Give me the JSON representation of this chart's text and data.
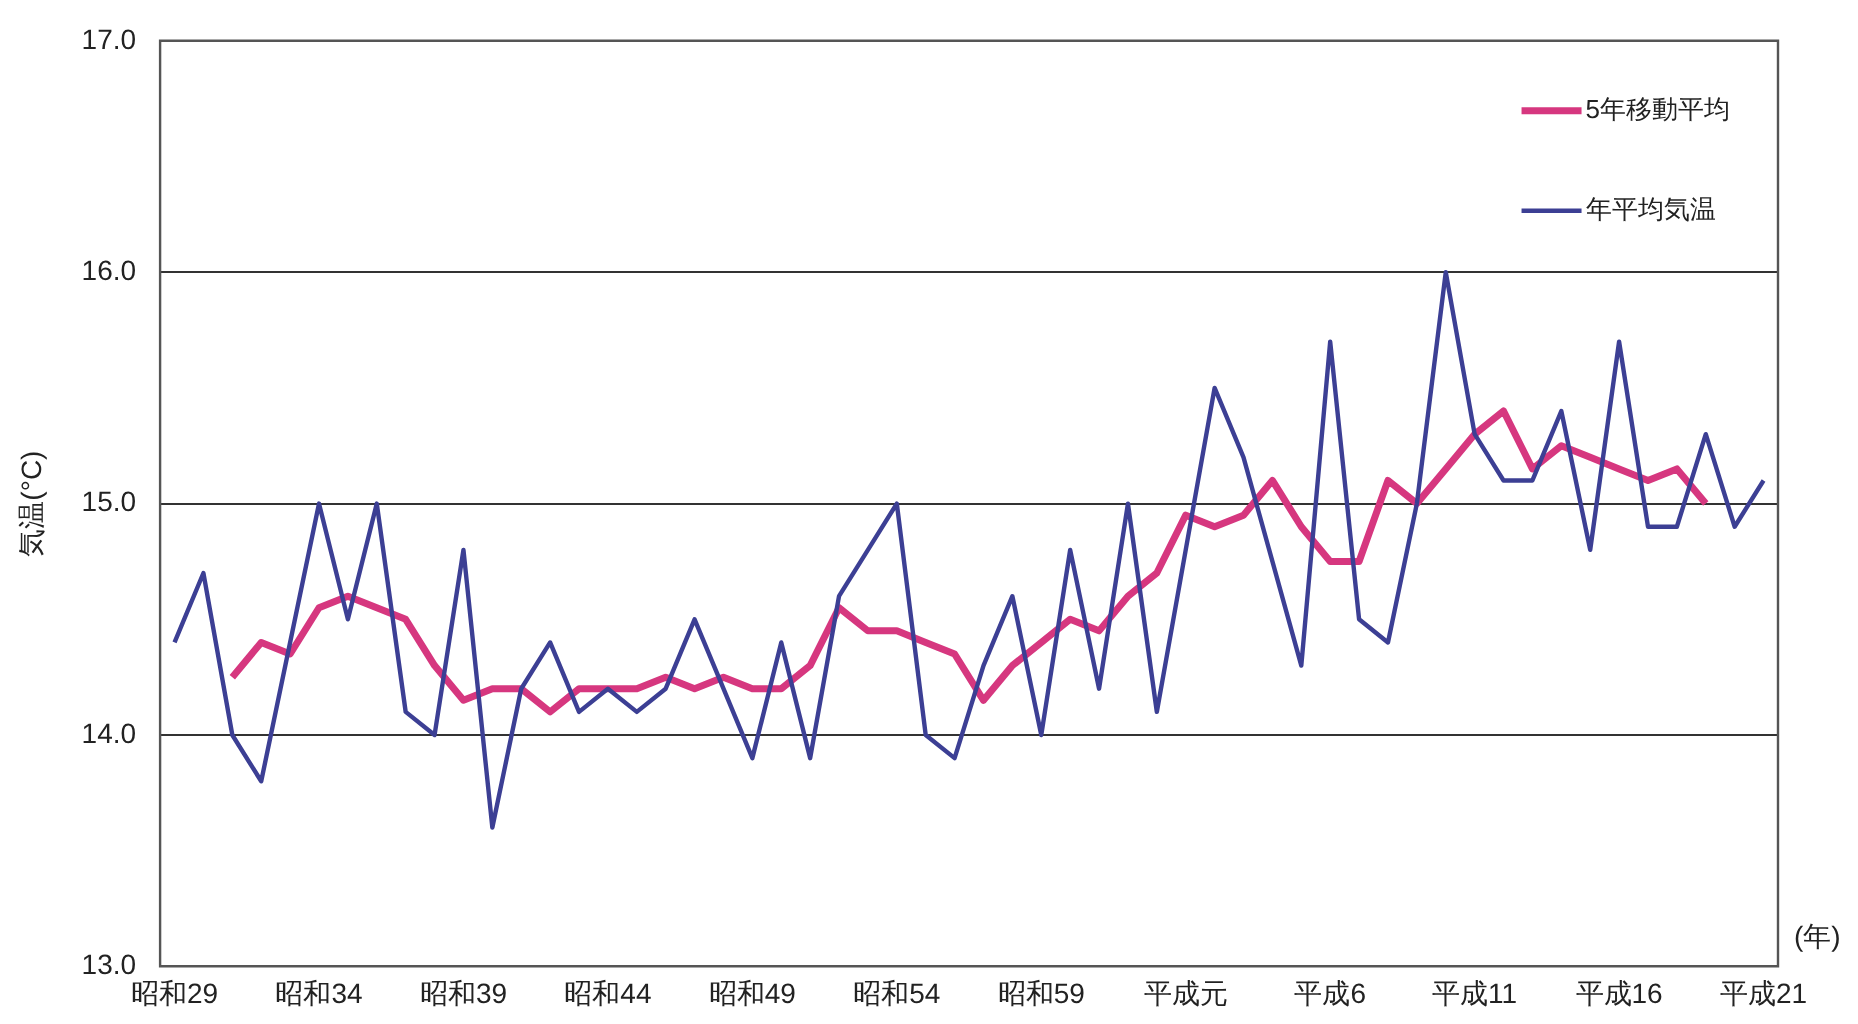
{
  "chart_data": {
    "type": "line",
    "xlabel": "(年)",
    "ylabel": "気温(°C)",
    "categories": [
      "昭和29",
      null,
      null,
      null,
      null,
      "昭和34",
      null,
      null,
      null,
      null,
      "昭和39",
      null,
      null,
      null,
      null,
      "昭和44",
      null,
      null,
      null,
      null,
      "昭和49",
      null,
      null,
      null,
      null,
      "昭和54",
      null,
      null,
      null,
      null,
      "昭和59",
      null,
      null,
      null,
      null,
      "平成元",
      null,
      null,
      null,
      null,
      "平成6",
      null,
      null,
      null,
      null,
      "平成11",
      null,
      null,
      null,
      null,
      "平成16",
      null,
      null,
      null,
      null,
      "平成21"
    ],
    "series": [
      {
        "name": "5年移動平均",
        "color": "#d6377f",
        "values": [
          null,
          null,
          14.25,
          14.4,
          14.35,
          14.55,
          14.6,
          14.55,
          14.5,
          14.3,
          14.15,
          14.2,
          14.2,
          14.1,
          14.2,
          14.2,
          14.2,
          14.25,
          14.2,
          14.25,
          14.2,
          14.2,
          14.3,
          14.55,
          14.45,
          14.45,
          14.4,
          14.35,
          14.15,
          14.3,
          14.4,
          14.5,
          14.45,
          14.6,
          14.7,
          14.95,
          14.9,
          14.95,
          15.1,
          14.9,
          14.75,
          14.75,
          15.1,
          15.0,
          15.15,
          15.3,
          15.4,
          15.15,
          15.25,
          15.2,
          15.15,
          15.1,
          15.15,
          15.0,
          null,
          null
        ]
      },
      {
        "name": "年平均気温",
        "color": "#3c3f94",
        "values": [
          14.4,
          14.7,
          14.0,
          13.8,
          14.4,
          15.0,
          14.5,
          15.0,
          14.1,
          14.0,
          14.8,
          13.6,
          14.2,
          14.4,
          14.1,
          14.2,
          14.1,
          14.2,
          14.5,
          14.2,
          13.9,
          14.4,
          13.9,
          14.6,
          14.8,
          15.0,
          14.0,
          13.9,
          14.3,
          14.6,
          14.0,
          14.8,
          14.2,
          15.0,
          14.1,
          14.8,
          15.5,
          15.2,
          14.75,
          14.3,
          15.7,
          14.5,
          14.4,
          15.0,
          16.0,
          15.3,
          15.1,
          15.1,
          15.4,
          14.8,
          15.7,
          14.9,
          14.9,
          15.3,
          14.9,
          15.1
        ]
      }
    ],
    "ylim": [
      13,
      17
    ],
    "yticks": [
      {
        "value": 13,
        "label": "13.0"
      },
      {
        "value": 14,
        "label": "14.0"
      },
      {
        "value": 15,
        "label": "15.0"
      },
      {
        "value": 16,
        "label": "16.0"
      },
      {
        "value": 17,
        "label": "17.0"
      }
    ],
    "grid": "y",
    "legend": "top right",
    "marker": "none",
    "line_style": "solid"
  }
}
